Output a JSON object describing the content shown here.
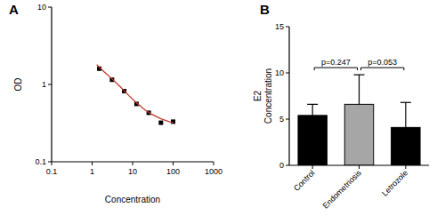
{
  "chart_data": [
    {
      "type": "scatter",
      "title": "A",
      "x_label": "Concentration",
      "y_label": "OD",
      "log": true,
      "xlim": [
        0.1,
        1000
      ],
      "xticks": [
        0.1,
        1,
        10,
        100,
        1000
      ],
      "ylim": [
        0.1,
        10
      ],
      "yticks": [
        0.1,
        1,
        10
      ],
      "grid": false,
      "series": [
        {
          "type": "scatter",
          "marker": "square",
          "color": "#000000",
          "x": [
            1.5,
            3.1,
            6.2,
            12.5,
            25,
            50,
            100
          ],
          "values": [
            1.6,
            1.15,
            0.82,
            0.56,
            0.43,
            0.32,
            0.33
          ]
        },
        {
          "type": "line",
          "line_style": "solid",
          "color": "#c0392b",
          "x": [
            1.3,
            2,
            3,
            5,
            8,
            12,
            20,
            30,
            50,
            80,
            100
          ],
          "values": [
            1.8,
            1.45,
            1.2,
            0.93,
            0.72,
            0.59,
            0.47,
            0.41,
            0.36,
            0.33,
            0.32
          ]
        }
      ]
    },
    {
      "type": "bar",
      "title": "B",
      "y_label": "E2\nConcentration",
      "categories": [
        "Control",
        "Endometriosis",
        "Letrozole"
      ],
      "values": [
        5.4,
        6.6,
        4.1
      ],
      "errors": [
        1.2,
        3.2,
        2.7
      ],
      "colors": [
        "#000000",
        "#a6a6a6",
        "#000000"
      ],
      "ylim": [
        0,
        15
      ],
      "yticks": [
        0,
        5,
        10,
        15
      ],
      "grid": false,
      "annotations": [
        "p=0.247",
        "p=0.053"
      ]
    }
  ]
}
